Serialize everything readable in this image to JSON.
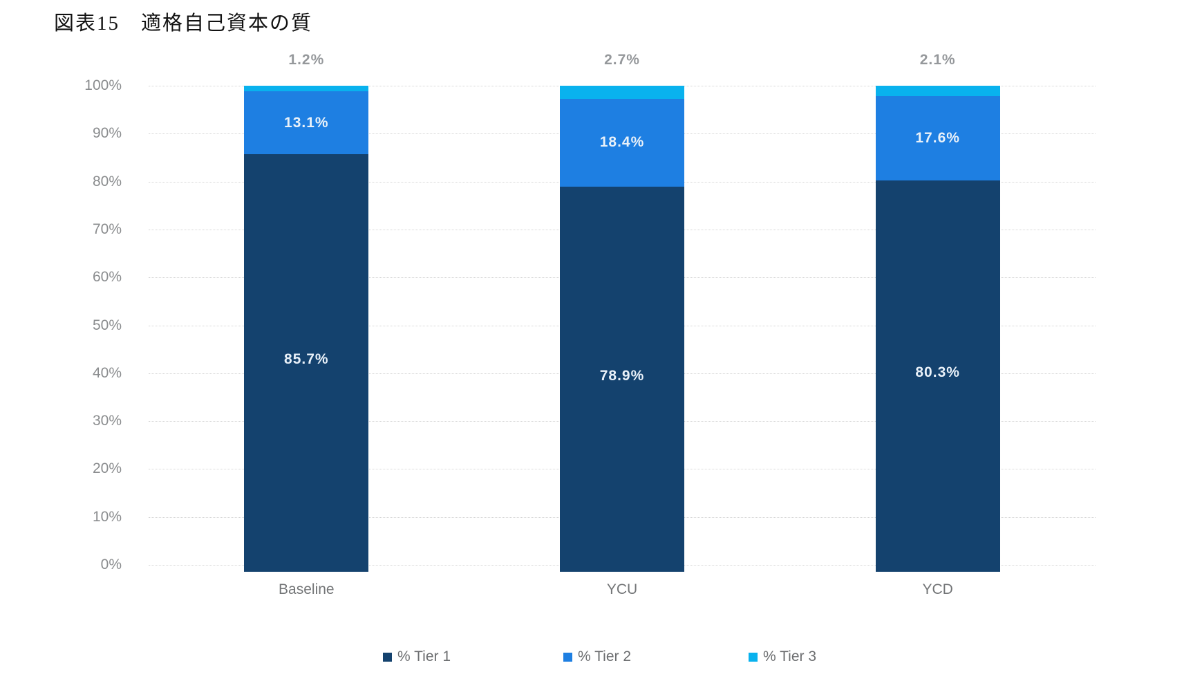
{
  "title": "図表15　適格自己資本の質",
  "chart_data": {
    "type": "bar",
    "stacked": true,
    "title": "図表15　適格自己資本の質",
    "categories": [
      "Baseline",
      "YCU",
      "YCD"
    ],
    "series": [
      {
        "name": "% Tier 1",
        "color": "#14426E",
        "values": [
          85.7,
          78.9,
          80.3
        ]
      },
      {
        "name": "% Tier 2",
        "color": "#1E7FE2",
        "values": [
          13.1,
          18.4,
          17.6
        ]
      },
      {
        "name": "% Tier 3",
        "color": "#09B2EE",
        "values": [
          1.2,
          2.7,
          2.1
        ]
      }
    ],
    "value_labels": {
      "inside_tier1": [
        "85.7%",
        "78.9%",
        "80.3%"
      ],
      "inside_tier2": [
        "13.1%",
        "18.4%",
        "17.6%"
      ],
      "above_bar_tier3": [
        "1.2%",
        "2.7%",
        "2.1%"
      ]
    },
    "xlabel": "",
    "ylabel": "",
    "ylim": [
      0,
      100
    ],
    "ytick_step": 10,
    "ytick_labels": [
      "0%",
      "10%",
      "20%",
      "30%",
      "40%",
      "50%",
      "60%",
      "70%",
      "80%",
      "90%",
      "100%"
    ],
    "grid": true,
    "legend_position": "bottom",
    "legend": [
      "% Tier 1",
      "% Tier 2",
      "% Tier 3"
    ],
    "colors": {
      "tier1": "#14426E",
      "tier2": "#1E7FE2",
      "tier3": "#09B2EE",
      "inside_label_text": "#E9F1F9",
      "outside_label_text": "#95989B",
      "axis_text": "#8A8C8E",
      "gridline": "#D6D6D6"
    }
  }
}
